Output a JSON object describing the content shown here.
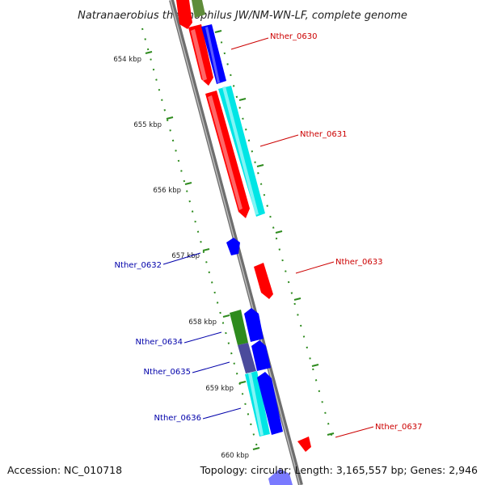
{
  "title": "Natranaerobius thermophilus JW/NM-WN-LF, complete genome",
  "footer": {
    "accession": "Accession: NC_010718",
    "summary": "Topology: circular; Length: 3,165,557 bp; Genes: 2,946"
  },
  "colors": {
    "backbone": "#8a8a8a",
    "ticks": "#2e8b1e",
    "forward_gene": "#ff0000",
    "reverse_gene": "#0000ff",
    "cds": "#00e5e5",
    "green_feature": "#2e8b1e",
    "purple_feature": "#4b4b9c",
    "forward_label": "#cc0000",
    "reverse_label": "#0000aa"
  },
  "kbp_labels": [
    "654 kbp",
    "655 kbp",
    "656 kbp",
    "657 kbp",
    "658 kbp",
    "659 kbp",
    "660 kbp"
  ],
  "gene_labels": [
    {
      "name": "Nther_0630",
      "strand": "forward"
    },
    {
      "name": "Nther_0631",
      "strand": "forward"
    },
    {
      "name": "Nther_0632",
      "strand": "reverse"
    },
    {
      "name": "Nther_0633",
      "strand": "forward"
    },
    {
      "name": "Nther_0634",
      "strand": "reverse"
    },
    {
      "name": "Nther_0635",
      "strand": "reverse"
    },
    {
      "name": "Nther_0636",
      "strand": "reverse"
    },
    {
      "name": "Nther_0637",
      "strand": "forward"
    }
  ]
}
